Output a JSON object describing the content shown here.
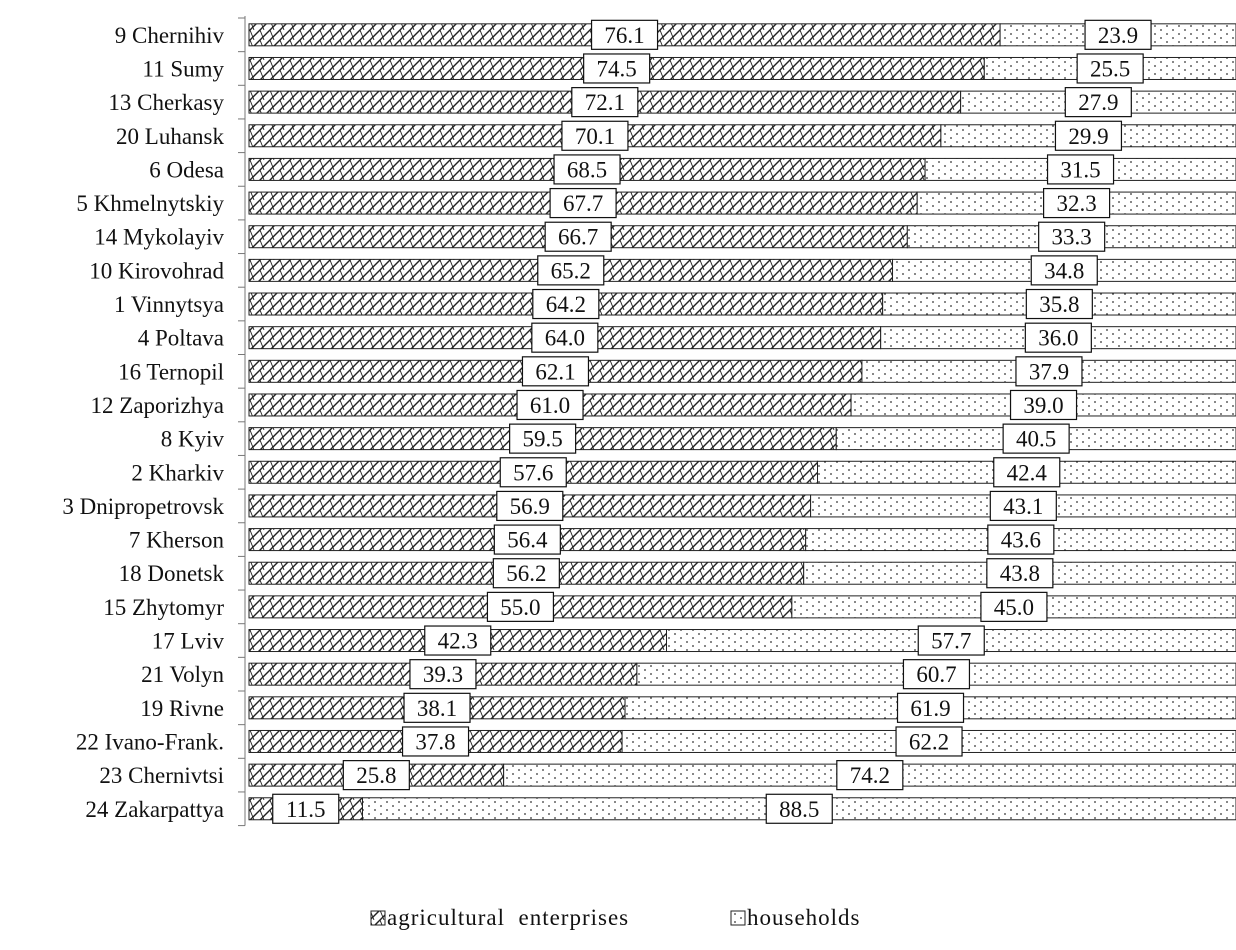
{
  "chart_data": {
    "type": "bar",
    "stacked": true,
    "orientation": "horizontal",
    "xlim": [
      0,
      100
    ],
    "grid": false,
    "legend_position": "bottom",
    "categories": [
      "9 Chernihiv",
      "11 Sumy",
      "13 Cherkasy",
      "20 Luhansk",
      "6 Odesa",
      "5 Khmelnytskiy",
      "14 Mykolayiv",
      "10 Kirovohrad",
      "1 Vinnytsya",
      "4 Poltava",
      "16 Ternopil",
      "12 Zaporizhya",
      "8 Kyiv",
      "2 Kharkiv",
      "3 Dnipropetrovsk",
      "7 Kherson",
      "18 Donetsk",
      "15 Zhytomyr",
      "17 Lviv",
      "21 Volyn",
      "19 Rivne",
      "22 Ivano-Frank.",
      "23 Chernivtsi",
      "24 Zakarpattya"
    ],
    "series": [
      {
        "name": "agricultural  enterprises",
        "values": [
          76.1,
          74.5,
          72.1,
          70.1,
          68.5,
          67.7,
          66.7,
          65.2,
          64.2,
          64.0,
          62.1,
          61.0,
          59.5,
          57.6,
          56.9,
          56.4,
          56.2,
          55.0,
          42.3,
          39.3,
          38.1,
          37.8,
          25.8,
          11.5
        ],
        "labels": [
          "76.1",
          "74.5",
          "72.1",
          "70.1",
          "68.5",
          "67.7",
          "66.7",
          "65.2",
          "64.2",
          "64.0",
          "62.1",
          "61.0",
          "59.5",
          "57.6",
          "56.9",
          "56.4",
          "56.2",
          "55.0",
          "42.3",
          "39.3",
          "38.1",
          "37.8",
          "25.8",
          "11.5"
        ]
      },
      {
        "name": "households",
        "values": [
          23.9,
          25.5,
          27.9,
          29.9,
          31.5,
          32.3,
          33.3,
          34.8,
          35.8,
          36.0,
          37.9,
          39.0,
          40.5,
          42.4,
          43.1,
          43.6,
          43.8,
          45.0,
          57.7,
          60.7,
          61.9,
          62.2,
          74.2,
          88.5
        ],
        "labels": [
          "23.9",
          "25.5",
          "27.9",
          "29.9",
          "31.5",
          "32.3",
          "33.3",
          "34.8",
          "35.8",
          "36.0",
          "37.9",
          "39.0",
          "40.5",
          "42.4",
          "43.1",
          "43.6",
          "43.8",
          "45.0",
          "57.7",
          "60.7",
          "61.9",
          "62.2",
          "74.2",
          "88.5"
        ]
      }
    ]
  }
}
